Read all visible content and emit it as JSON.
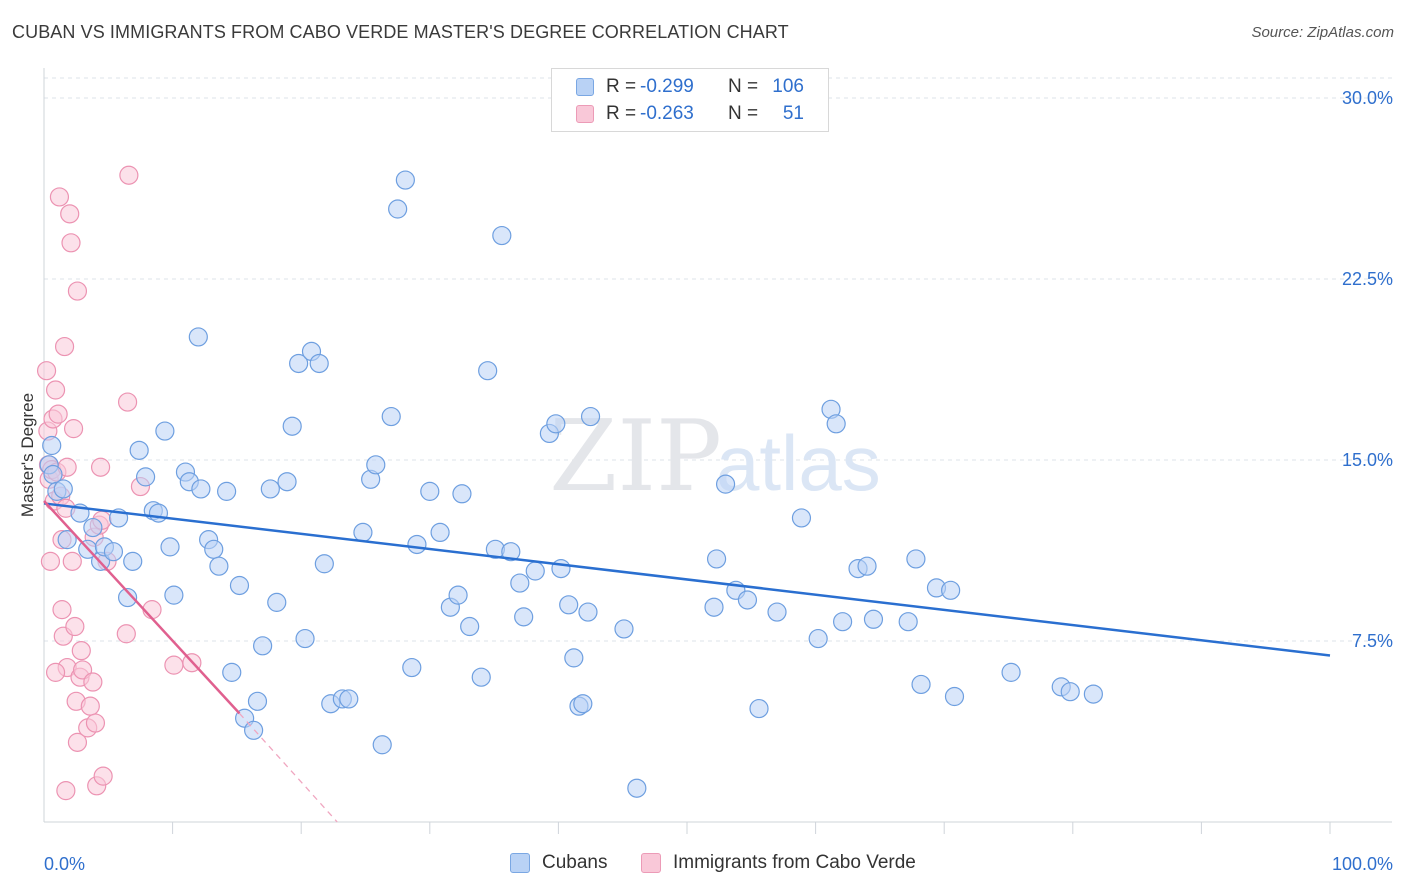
{
  "title": "CUBAN VS IMMIGRANTS FROM CABO VERDE MASTER'S DEGREE CORRELATION CHART",
  "source": "Source: ZipAtlas.com",
  "watermark": {
    "zip": "ZIP",
    "atlas": "atlas"
  },
  "legend": {
    "rows": [
      {
        "r_label": "R =",
        "r_value": "-0.299",
        "n_label": "N =",
        "n_value": "106"
      },
      {
        "r_label": "R =",
        "r_value": "-0.263",
        "n_label": "N =",
        "n_value": "51"
      }
    ]
  },
  "bottom_legend": {
    "cubans": "Cubans",
    "cabo_verde": "Immigrants from Cabo Verde"
  },
  "colors": {
    "blue_fill": "#b9d2f5",
    "blue_stroke": "#6e9fe0",
    "blue_line": "#2a6fd0",
    "pink_fill": "#f9c8d8",
    "pink_stroke": "#ec93b2",
    "pink_line": "#e0608f",
    "axis_text": "#2f6fcd",
    "grid": "#dde3ea"
  },
  "chart_data": {
    "type": "scatter",
    "title": "CUBAN VS IMMIGRANTS FROM CABO VERDE MASTER'S DEGREE CORRELATION CHART",
    "xlabel": "",
    "ylabel": "Master's Degree",
    "xlim": [
      0,
      100
    ],
    "ylim": [
      0,
      30
    ],
    "x_tick_labels": [
      "0.0%",
      "100.0%"
    ],
    "y_ticks": [
      7.5,
      15.0,
      22.5,
      30.0
    ],
    "y_tick_labels": [
      "7.5%",
      "15.0%",
      "22.5%",
      "30.0%"
    ],
    "grid": true,
    "series": [
      {
        "name": "Cubans",
        "r": -0.299,
        "n": 106,
        "trend": {
          "x": [
            0,
            100
          ],
          "y": [
            13.2,
            6.9
          ],
          "dashed_extension": false
        },
        "points": [
          [
            0.4,
            14.8
          ],
          [
            0.6,
            15.6
          ],
          [
            0.7,
            14.4
          ],
          [
            1.0,
            13.7
          ],
          [
            1.5,
            13.8
          ],
          [
            1.8,
            11.7
          ],
          [
            2.8,
            12.8
          ],
          [
            3.4,
            11.3
          ],
          [
            3.8,
            12.2
          ],
          [
            4.4,
            10.8
          ],
          [
            4.7,
            11.4
          ],
          [
            5.4,
            11.2
          ],
          [
            5.8,
            12.6
          ],
          [
            6.5,
            9.3
          ],
          [
            6.9,
            10.8
          ],
          [
            7.4,
            15.4
          ],
          [
            7.9,
            14.3
          ],
          [
            8.5,
            12.9
          ],
          [
            8.9,
            12.8
          ],
          [
            9.4,
            16.2
          ],
          [
            9.8,
            11.4
          ],
          [
            10.1,
            9.4
          ],
          [
            11.0,
            14.5
          ],
          [
            11.3,
            14.1
          ],
          [
            12.0,
            20.1
          ],
          [
            12.2,
            13.8
          ],
          [
            12.8,
            11.7
          ],
          [
            13.2,
            11.3
          ],
          [
            13.6,
            10.6
          ],
          [
            14.2,
            13.7
          ],
          [
            14.6,
            6.2
          ],
          [
            15.2,
            9.8
          ],
          [
            15.6,
            4.3
          ],
          [
            16.3,
            3.8
          ],
          [
            16.6,
            5.0
          ],
          [
            17.0,
            7.3
          ],
          [
            17.6,
            13.8
          ],
          [
            18.1,
            9.1
          ],
          [
            18.9,
            14.1
          ],
          [
            19.3,
            16.4
          ],
          [
            19.8,
            19.0
          ],
          [
            20.3,
            7.6
          ],
          [
            20.8,
            19.5
          ],
          [
            21.4,
            19.0
          ],
          [
            21.8,
            10.7
          ],
          [
            22.3,
            4.9
          ],
          [
            23.2,
            5.1
          ],
          [
            23.7,
            5.1
          ],
          [
            24.8,
            12.0
          ],
          [
            25.4,
            14.2
          ],
          [
            25.8,
            14.8
          ],
          [
            26.3,
            3.2
          ],
          [
            27.0,
            16.8
          ],
          [
            27.5,
            25.4
          ],
          [
            28.1,
            26.6
          ],
          [
            28.6,
            6.4
          ],
          [
            29.0,
            11.5
          ],
          [
            30.0,
            13.7
          ],
          [
            30.8,
            12.0
          ],
          [
            31.6,
            8.9
          ],
          [
            32.2,
            9.4
          ],
          [
            32.5,
            13.6
          ],
          [
            33.1,
            8.1
          ],
          [
            34.0,
            6.0
          ],
          [
            34.5,
            18.7
          ],
          [
            35.1,
            11.3
          ],
          [
            35.6,
            24.3
          ],
          [
            36.3,
            11.2
          ],
          [
            37.0,
            9.9
          ],
          [
            37.3,
            8.5
          ],
          [
            38.2,
            10.4
          ],
          [
            39.3,
            16.1
          ],
          [
            39.8,
            16.5
          ],
          [
            40.2,
            10.5
          ],
          [
            40.8,
            9.0
          ],
          [
            41.2,
            6.8
          ],
          [
            41.6,
            4.8
          ],
          [
            41.9,
            4.9
          ],
          [
            42.3,
            8.7
          ],
          [
            42.5,
            16.8
          ],
          [
            45.1,
            8.0
          ],
          [
            46.1,
            1.4
          ],
          [
            52.1,
            8.9
          ],
          [
            52.3,
            10.9
          ],
          [
            53.0,
            14.0
          ],
          [
            53.8,
            9.6
          ],
          [
            54.7,
            9.2
          ],
          [
            55.6,
            4.7
          ],
          [
            57.0,
            8.7
          ],
          [
            58.9,
            12.6
          ],
          [
            60.2,
            7.6
          ],
          [
            61.2,
            17.1
          ],
          [
            61.6,
            16.5
          ],
          [
            62.1,
            8.3
          ],
          [
            63.3,
            10.5
          ],
          [
            64.0,
            10.6
          ],
          [
            64.5,
            8.4
          ],
          [
            67.2,
            8.3
          ],
          [
            67.8,
            10.9
          ],
          [
            68.2,
            5.7
          ],
          [
            69.4,
            9.7
          ],
          [
            70.5,
            9.6
          ],
          [
            70.8,
            5.2
          ],
          [
            75.2,
            6.2
          ],
          [
            79.1,
            5.6
          ],
          [
            79.8,
            5.4
          ],
          [
            81.6,
            5.3
          ]
        ]
      },
      {
        "name": "Immigrants from Cabo Verde",
        "r": -0.263,
        "n": 51,
        "trend": {
          "x": [
            0,
            15.2
          ],
          "y": [
            13.3,
            4.5
          ],
          "dashed_extension": {
            "x": [
              15.2,
              22.8
            ],
            "y": [
              4.5,
              0.0
            ]
          }
        },
        "points": [
          [
            0.2,
            18.7
          ],
          [
            0.3,
            16.2
          ],
          [
            0.35,
            14.8
          ],
          [
            0.4,
            14.2
          ],
          [
            0.5,
            10.8
          ],
          [
            0.6,
            14.6
          ],
          [
            0.7,
            16.7
          ],
          [
            0.8,
            13.3
          ],
          [
            0.9,
            17.9
          ],
          [
            1.0,
            14.5
          ],
          [
            1.1,
            16.9
          ],
          [
            1.2,
            25.9
          ],
          [
            1.3,
            13.5
          ],
          [
            1.4,
            11.7
          ],
          [
            1.4,
            8.8
          ],
          [
            1.5,
            7.7
          ],
          [
            1.6,
            19.7
          ],
          [
            1.7,
            13.0
          ],
          [
            1.8,
            14.7
          ],
          [
            1.8,
            6.4
          ],
          [
            2.0,
            25.2
          ],
          [
            2.1,
            24.0
          ],
          [
            2.3,
            16.3
          ],
          [
            2.4,
            8.1
          ],
          [
            2.5,
            5.0
          ],
          [
            2.6,
            22.0
          ],
          [
            2.6,
            3.3
          ],
          [
            2.8,
            6.0
          ],
          [
            2.9,
            7.1
          ],
          [
            3.0,
            6.3
          ],
          [
            3.4,
            3.9
          ],
          [
            3.6,
            4.8
          ],
          [
            3.8,
            5.8
          ],
          [
            3.9,
            11.8
          ],
          [
            4.0,
            4.1
          ],
          [
            4.1,
            1.5
          ],
          [
            4.3,
            12.3
          ],
          [
            4.4,
            14.7
          ],
          [
            4.5,
            12.5
          ],
          [
            4.6,
            1.9
          ],
          [
            4.9,
            10.8
          ],
          [
            6.4,
            7.8
          ],
          [
            6.5,
            17.4
          ],
          [
            6.6,
            26.8
          ],
          [
            7.5,
            13.9
          ],
          [
            8.4,
            8.8
          ],
          [
            10.1,
            6.5
          ],
          [
            11.5,
            6.6
          ],
          [
            1.7,
            1.3
          ],
          [
            0.9,
            6.2
          ],
          [
            2.2,
            10.8
          ]
        ]
      }
    ]
  }
}
